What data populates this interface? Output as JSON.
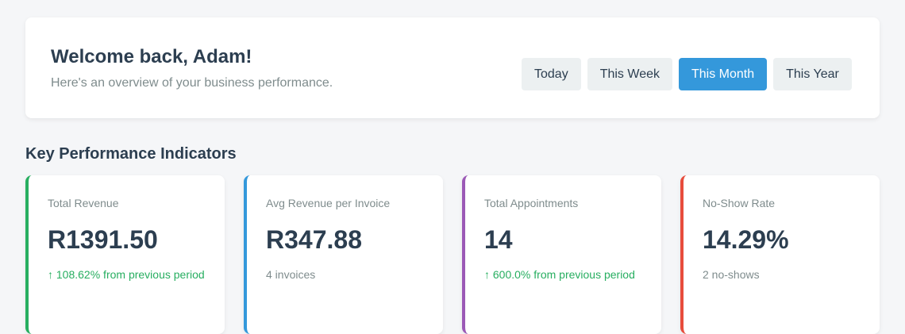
{
  "header": {
    "title": "Welcome back, Adam!",
    "subtitle": "Here's an overview of your business performance.",
    "periods": [
      {
        "label": "Today"
      },
      {
        "label": "This Week"
      },
      {
        "label": "This Month",
        "active": true
      },
      {
        "label": "This Year"
      }
    ]
  },
  "kpi": {
    "title": "Key Performance Indicators",
    "cards": [
      {
        "label": "Total Revenue",
        "value": "R1391.50",
        "note": "↑ 108.62% from previous period",
        "color": "#27ae60"
      },
      {
        "label": "Avg Revenue per Invoice",
        "value": "R347.88",
        "note": "4 invoices",
        "color": "#3498db"
      },
      {
        "label": "Total Appointments",
        "value": "14",
        "note": "↑ 600.0% from previous period",
        "color": "#9b59b6"
      },
      {
        "label": "No-Show Rate",
        "value": "14.29%",
        "note": "2 no-shows",
        "color": "#e74c3c"
      }
    ]
  }
}
